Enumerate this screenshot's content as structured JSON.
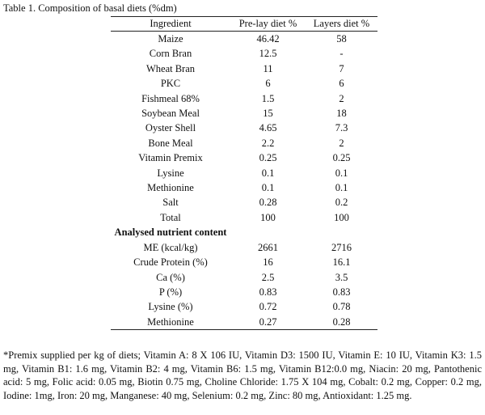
{
  "caption": "Table 1. Composition of basal diets (%dm)",
  "table": {
    "headers": [
      "Ingredient",
      "Pre-lay diet %",
      "Layers diet %"
    ],
    "rows": [
      [
        "Maize",
        "46.42",
        "58"
      ],
      [
        "Corn Bran",
        "12.5",
        "-"
      ],
      [
        "Wheat Bran",
        "11",
        "7"
      ],
      [
        "PKC",
        "6",
        "6"
      ],
      [
        "Fishmeal 68%",
        "1.5",
        "2"
      ],
      [
        "Soybean Meal",
        "15",
        "18"
      ],
      [
        "Oyster Shell",
        "4.65",
        "7.3"
      ],
      [
        "Bone Meal",
        "2.2",
        "2"
      ],
      [
        "Vitamin Premix",
        "0.25",
        "0.25"
      ],
      [
        "Lysine",
        "0.1",
        "0.1"
      ],
      [
        "Methionine",
        "0.1",
        "0.1"
      ],
      [
        "Salt",
        "0.28",
        "0.2"
      ],
      [
        "Total",
        "100",
        "100"
      ]
    ],
    "section_heading": "Analysed nutrient content",
    "nutrient_rows": [
      [
        "ME (kcal/kg)",
        "2661",
        "2716"
      ],
      [
        "Crude Protein (%)",
        "16",
        "16.1"
      ],
      [
        "Ca (%)",
        "2.5",
        "3.5"
      ],
      [
        "P (%)",
        "0.83",
        "0.83"
      ],
      [
        "Lysine (%)",
        "0.72",
        "0.78"
      ],
      [
        "Methionine",
        "0.27",
        "0.28"
      ]
    ]
  },
  "footnote": "*Premix supplied per kg of diets; Vitamin A: 8 X 106 IU, Vitamin D3: 1500 IU, Vitamin E: 10 IU, Vitamin K3: 1.5 mg, Vitamin B1: 1.6 mg, Vitamin B2: 4 mg, Vitamin B6: 1.5 mg, Vitamin B12:0.0 mg, Niacin: 20 mg, Pantothenic acid: 5 mg, Folic acid: 0.05 mg, Biotin 0.75 mg, Choline Chloride: 1.75 X 104 mg, Cobalt: 0.2 mg, Copper: 0.2 mg, Iodine: 1mg, Iron: 20 mg, Manganese: 40 mg, Selenium: 0.2 mg, Zinc: 80 mg, Antioxidant: 1.25 mg."
}
